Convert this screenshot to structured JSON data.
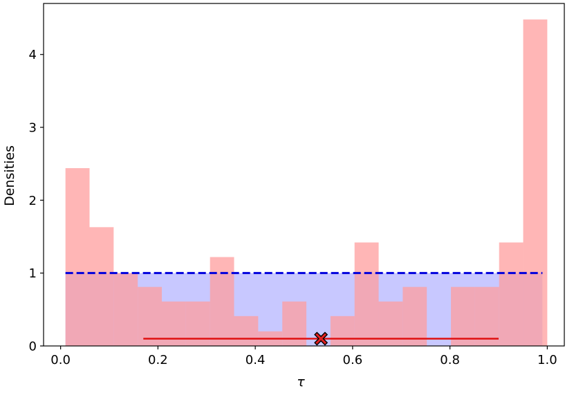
{
  "chart_data": {
    "type": "bar",
    "xlabel": "τ",
    "ylabel": "Densities",
    "xlim": [
      -0.035,
      1.035
    ],
    "ylim": [
      0,
      4.7
    ],
    "xticks": [
      "0.0",
      "0.2",
      "0.4",
      "0.6",
      "0.8",
      "1.0"
    ],
    "xtick_values": [
      0.0,
      0.2,
      0.4,
      0.6,
      0.8,
      1.0
    ],
    "yticks": [
      "0",
      "1",
      "2",
      "3",
      "4"
    ],
    "ytick_values": [
      0,
      1,
      2,
      3,
      4
    ],
    "grid": false,
    "histogram": {
      "bin_edges": [
        0.01,
        0.0595,
        0.109,
        0.1585,
        0.208,
        0.2575,
        0.307,
        0.3565,
        0.406,
        0.4555,
        0.505,
        0.5545,
        0.604,
        0.6535,
        0.703,
        0.7525,
        0.802,
        0.8515,
        0.901,
        0.9505,
        1.0
      ],
      "densities": [
        2.44,
        1.63,
        1.0,
        0.81,
        0.61,
        0.61,
        1.22,
        0.41,
        0.2,
        0.61,
        0.0,
        0.41,
        1.42,
        0.61,
        0.81,
        0.0,
        0.81,
        0.81,
        1.42,
        4.48
      ],
      "color": "#ff9e9e"
    },
    "uniform_density": {
      "x_range": [
        0.01,
        0.99
      ],
      "value": 1.0,
      "fill_color": "#c8c8ff",
      "line_color": "#0000dd",
      "line_style": "dashed"
    },
    "interval": {
      "x_range": [
        0.17,
        0.9
      ],
      "y": 0.1,
      "color": "#e01010"
    },
    "point_estimate": {
      "x": 0.535,
      "y": 0.1,
      "marker": "X",
      "color": "#e02020"
    }
  }
}
